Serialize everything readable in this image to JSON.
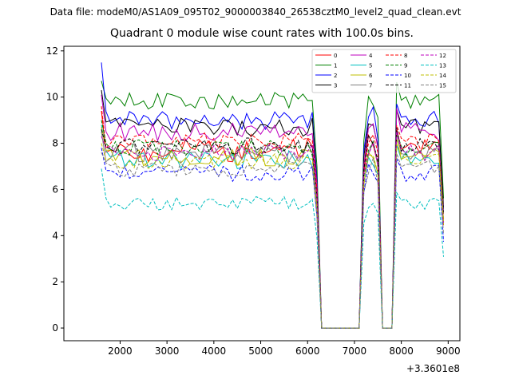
{
  "suptitle": "Data file: modeM0/AS1A09_095T02_9000003840_26538cztM0_level2_quad_clean.evt",
  "chart_data": {
    "type": "line",
    "title": "Quadrant 0 module wise count rates with 100.0s bins.",
    "xlabel": "",
    "ylabel": "",
    "x_offset_label": "+3.3601e8",
    "xlim": [
      800,
      9250
    ],
    "ylim": [
      -0.55,
      12.2
    ],
    "xticks": [
      2000,
      3000,
      4000,
      5000,
      6000,
      7000,
      8000,
      9000
    ],
    "xtick_labels": [
      "2000",
      "3000",
      "4000",
      "5000",
      "6000",
      "7000",
      "8000",
      "9000"
    ],
    "yticks": [
      0,
      2,
      4,
      6,
      8,
      10,
      12
    ],
    "ytick_labels": [
      "0",
      "2",
      "4",
      "6",
      "8",
      "10",
      "12"
    ],
    "grid": false,
    "legend_position": "top-right",
    "x_start": 1600,
    "x_step": 100,
    "segments": [
      {
        "start": 1600,
        "end": 6000,
        "active": true
      },
      {
        "start": 6100,
        "end": 6200,
        "active": true
      },
      {
        "start": 6300,
        "end": 7100,
        "active": false
      },
      {
        "start": 7200,
        "end": 7500,
        "active": true
      },
      {
        "start": 7600,
        "end": 7800,
        "active": false
      },
      {
        "start": 7900,
        "end": 8900,
        "active": true
      }
    ],
    "series": [
      {
        "name": "0",
        "color": "#ff0000",
        "dash": "solid",
        "base": 7.7,
        "first": 9.4,
        "variation": 0.5
      },
      {
        "name": "1",
        "color": "#008000",
        "dash": "solid",
        "base": 9.8,
        "first": 10.7,
        "variation": 0.4
      },
      {
        "name": "2",
        "color": "#0000ff",
        "dash": "solid",
        "base": 9.0,
        "first": 11.5,
        "variation": 0.4
      },
      {
        "name": "3",
        "color": "#000000",
        "dash": "solid",
        "base": 8.7,
        "first": 10.3,
        "variation": 0.4
      },
      {
        "name": "4",
        "color": "#bf00bf",
        "dash": "solid",
        "base": 8.5,
        "first": 10.1,
        "variation": 0.4
      },
      {
        "name": "5",
        "color": "#00bfbf",
        "dash": "solid",
        "base": 7.3,
        "first": 8.8,
        "variation": 0.4
      },
      {
        "name": "6",
        "color": "#bfbf00",
        "dash": "solid",
        "base": 7.4,
        "first": 8.7,
        "variation": 0.4
      },
      {
        "name": "7",
        "color": "#808080",
        "dash": "solid",
        "base": 7.6,
        "first": 8.5,
        "variation": 0.4
      },
      {
        "name": "8",
        "color": "#ff0000",
        "dash": "dashed",
        "base": 8.1,
        "first": 9.6,
        "variation": 0.35
      },
      {
        "name": "9",
        "color": "#008000",
        "dash": "dashed",
        "base": 7.8,
        "first": 9.0,
        "variation": 0.35
      },
      {
        "name": "10",
        "color": "#0000ff",
        "dash": "dashed",
        "base": 6.7,
        "first": 7.8,
        "variation": 0.35
      },
      {
        "name": "11",
        "color": "#000000",
        "dash": "dashed",
        "base": 7.9,
        "first": 8.6,
        "variation": 0.35
      },
      {
        "name": "12",
        "color": "#bf00bf",
        "dash": "dashed",
        "base": 7.6,
        "first": 8.3,
        "variation": 0.35
      },
      {
        "name": "13",
        "color": "#00bfbf",
        "dash": "dashed",
        "base": 5.4,
        "first": 6.9,
        "variation": 0.3
      },
      {
        "name": "14",
        "color": "#bfbf00",
        "dash": "dashed",
        "base": 7.2,
        "first": 8.0,
        "variation": 0.35
      },
      {
        "name": "15",
        "color": "#808080",
        "dash": "dashed",
        "base": 6.9,
        "first": 7.6,
        "variation": 0.35
      }
    ]
  }
}
